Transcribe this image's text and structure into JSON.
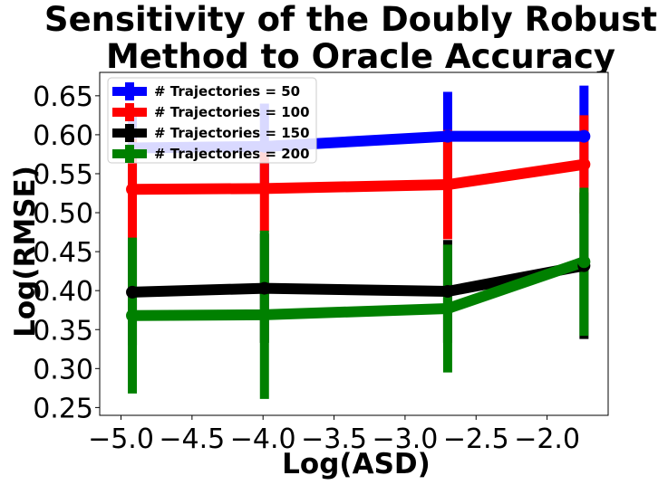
{
  "chart_data": {
    "type": "line",
    "title_lines": [
      "Sensitivity of the Doubly Robust",
      "Method to Oracle Accuracy"
    ],
    "xlabel": "Log(ASD)",
    "ylabel": "Log(RMSE)",
    "x": [
      -4.92,
      -3.99,
      -2.7,
      -1.74
    ],
    "xlim": [
      -5.15,
      -1.57
    ],
    "ylim": [
      0.24,
      0.68
    ],
    "x_ticks": [
      -5.0,
      -4.5,
      -4.0,
      -3.5,
      -3.0,
      -2.5,
      -2.0
    ],
    "x_tick_labels": [
      "−5.0",
      "−4.5",
      "−4.0",
      "−3.5",
      "−3.0",
      "−2.5",
      "−2.0"
    ],
    "y_ticks": [
      0.25,
      0.3,
      0.35,
      0.4,
      0.45,
      0.5,
      0.55,
      0.6,
      0.65
    ],
    "y_tick_labels": [
      "0.25",
      "0.30",
      "0.35",
      "0.40",
      "0.45",
      "0.50",
      "0.55",
      "0.60",
      "0.65"
    ],
    "legend_position": "top-left",
    "series": [
      {
        "name": "# Trajectories = 50",
        "color": "#0000ff",
        "values": [
          0.583,
          0.585,
          0.598,
          0.598
        ],
        "errors": [
          0.05,
          0.055,
          0.057,
          0.065
        ]
      },
      {
        "name": "# Trajectories = 100",
        "color": "#ff0000",
        "values": [
          0.53,
          0.531,
          0.536,
          0.562
        ],
        "errors": [
          0.065,
          0.055,
          0.07,
          0.063
        ]
      },
      {
        "name": "# Trajectories = 150",
        "color": "#000000",
        "values": [
          0.398,
          0.403,
          0.399,
          0.432
        ],
        "errors": [
          0.068,
          0.07,
          0.066,
          0.094
        ]
      },
      {
        "name": "# Trajectories = 200",
        "color": "#008000",
        "values": [
          0.368,
          0.369,
          0.377,
          0.437
        ],
        "errors": [
          0.1,
          0.108,
          0.082,
          0.095
        ]
      }
    ]
  }
}
